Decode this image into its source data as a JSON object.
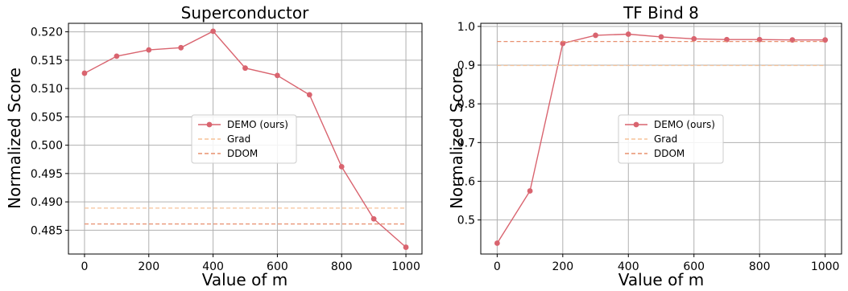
{
  "figure": {
    "charts": [
      "Superconductor",
      "TF Bind 8"
    ]
  },
  "chart_data": [
    {
      "type": "line",
      "title": "Superconductor",
      "xlabel": "Value of m",
      "ylabel": "Normalized Score",
      "xlim": [
        -50,
        1050
      ],
      "ylim": [
        0.4808,
        0.5215
      ],
      "xticks": [
        0,
        200,
        400,
        600,
        800,
        1000
      ],
      "yticks": [
        0.485,
        0.49,
        0.495,
        0.5,
        0.505,
        0.51,
        0.515,
        0.52
      ],
      "ytick_labels": [
        "0.485",
        "0.490",
        "0.495",
        "0.500",
        "0.505",
        "0.510",
        "0.515",
        "0.520"
      ],
      "grid": true,
      "legend_position": "center-right",
      "series": [
        {
          "name": "DEMO (ours)",
          "style": "line-marker",
          "color": "#d9646f",
          "x": [
            0,
            100,
            200,
            300,
            400,
            500,
            600,
            700,
            800,
            900,
            1000
          ],
          "y": [
            0.5127,
            0.5157,
            0.5168,
            0.5172,
            0.5201,
            0.5136,
            0.5123,
            0.5089,
            0.4962,
            0.487,
            0.482
          ]
        },
        {
          "name": "Grad",
          "style": "dashed",
          "color": "#f5c299",
          "x": [
            0,
            1000
          ],
          "y": [
            0.4889,
            0.4889
          ]
        },
        {
          "name": "DDOM",
          "style": "dashed",
          "color": "#e8906f",
          "x": [
            0,
            1000
          ],
          "y": [
            0.4861,
            0.4861
          ]
        }
      ]
    },
    {
      "type": "line",
      "title": "TF Bind 8",
      "xlabel": "Value of m",
      "ylabel": "Normalized Score",
      "xlim": [
        -50,
        1050
      ],
      "ylim": [
        0.412,
        1.008
      ],
      "xticks": [
        0,
        200,
        400,
        600,
        800,
        1000
      ],
      "yticks": [
        0.5,
        0.6,
        0.7,
        0.8,
        0.9,
        1.0
      ],
      "ytick_labels": [
        "0.5",
        "0.6",
        "0.7",
        "0.8",
        "0.9",
        "1.0"
      ],
      "grid": true,
      "legend_position": "center-right",
      "series": [
        {
          "name": "DEMO (ours)",
          "style": "line-marker",
          "color": "#d9646f",
          "x": [
            0,
            100,
            200,
            300,
            400,
            500,
            600,
            700,
            800,
            900,
            1000
          ],
          "y": [
            0.44,
            0.575,
            0.956,
            0.977,
            0.98,
            0.973,
            0.968,
            0.966,
            0.966,
            0.965,
            0.965
          ]
        },
        {
          "name": "Grad",
          "style": "dashed",
          "color": "#f5c299",
          "x": [
            0,
            1000
          ],
          "y": [
            0.899,
            0.899
          ]
        },
        {
          "name": "DDOM",
          "style": "dashed",
          "color": "#e8906f",
          "x": [
            0,
            1000
          ],
          "y": [
            0.961,
            0.961
          ]
        }
      ]
    }
  ]
}
